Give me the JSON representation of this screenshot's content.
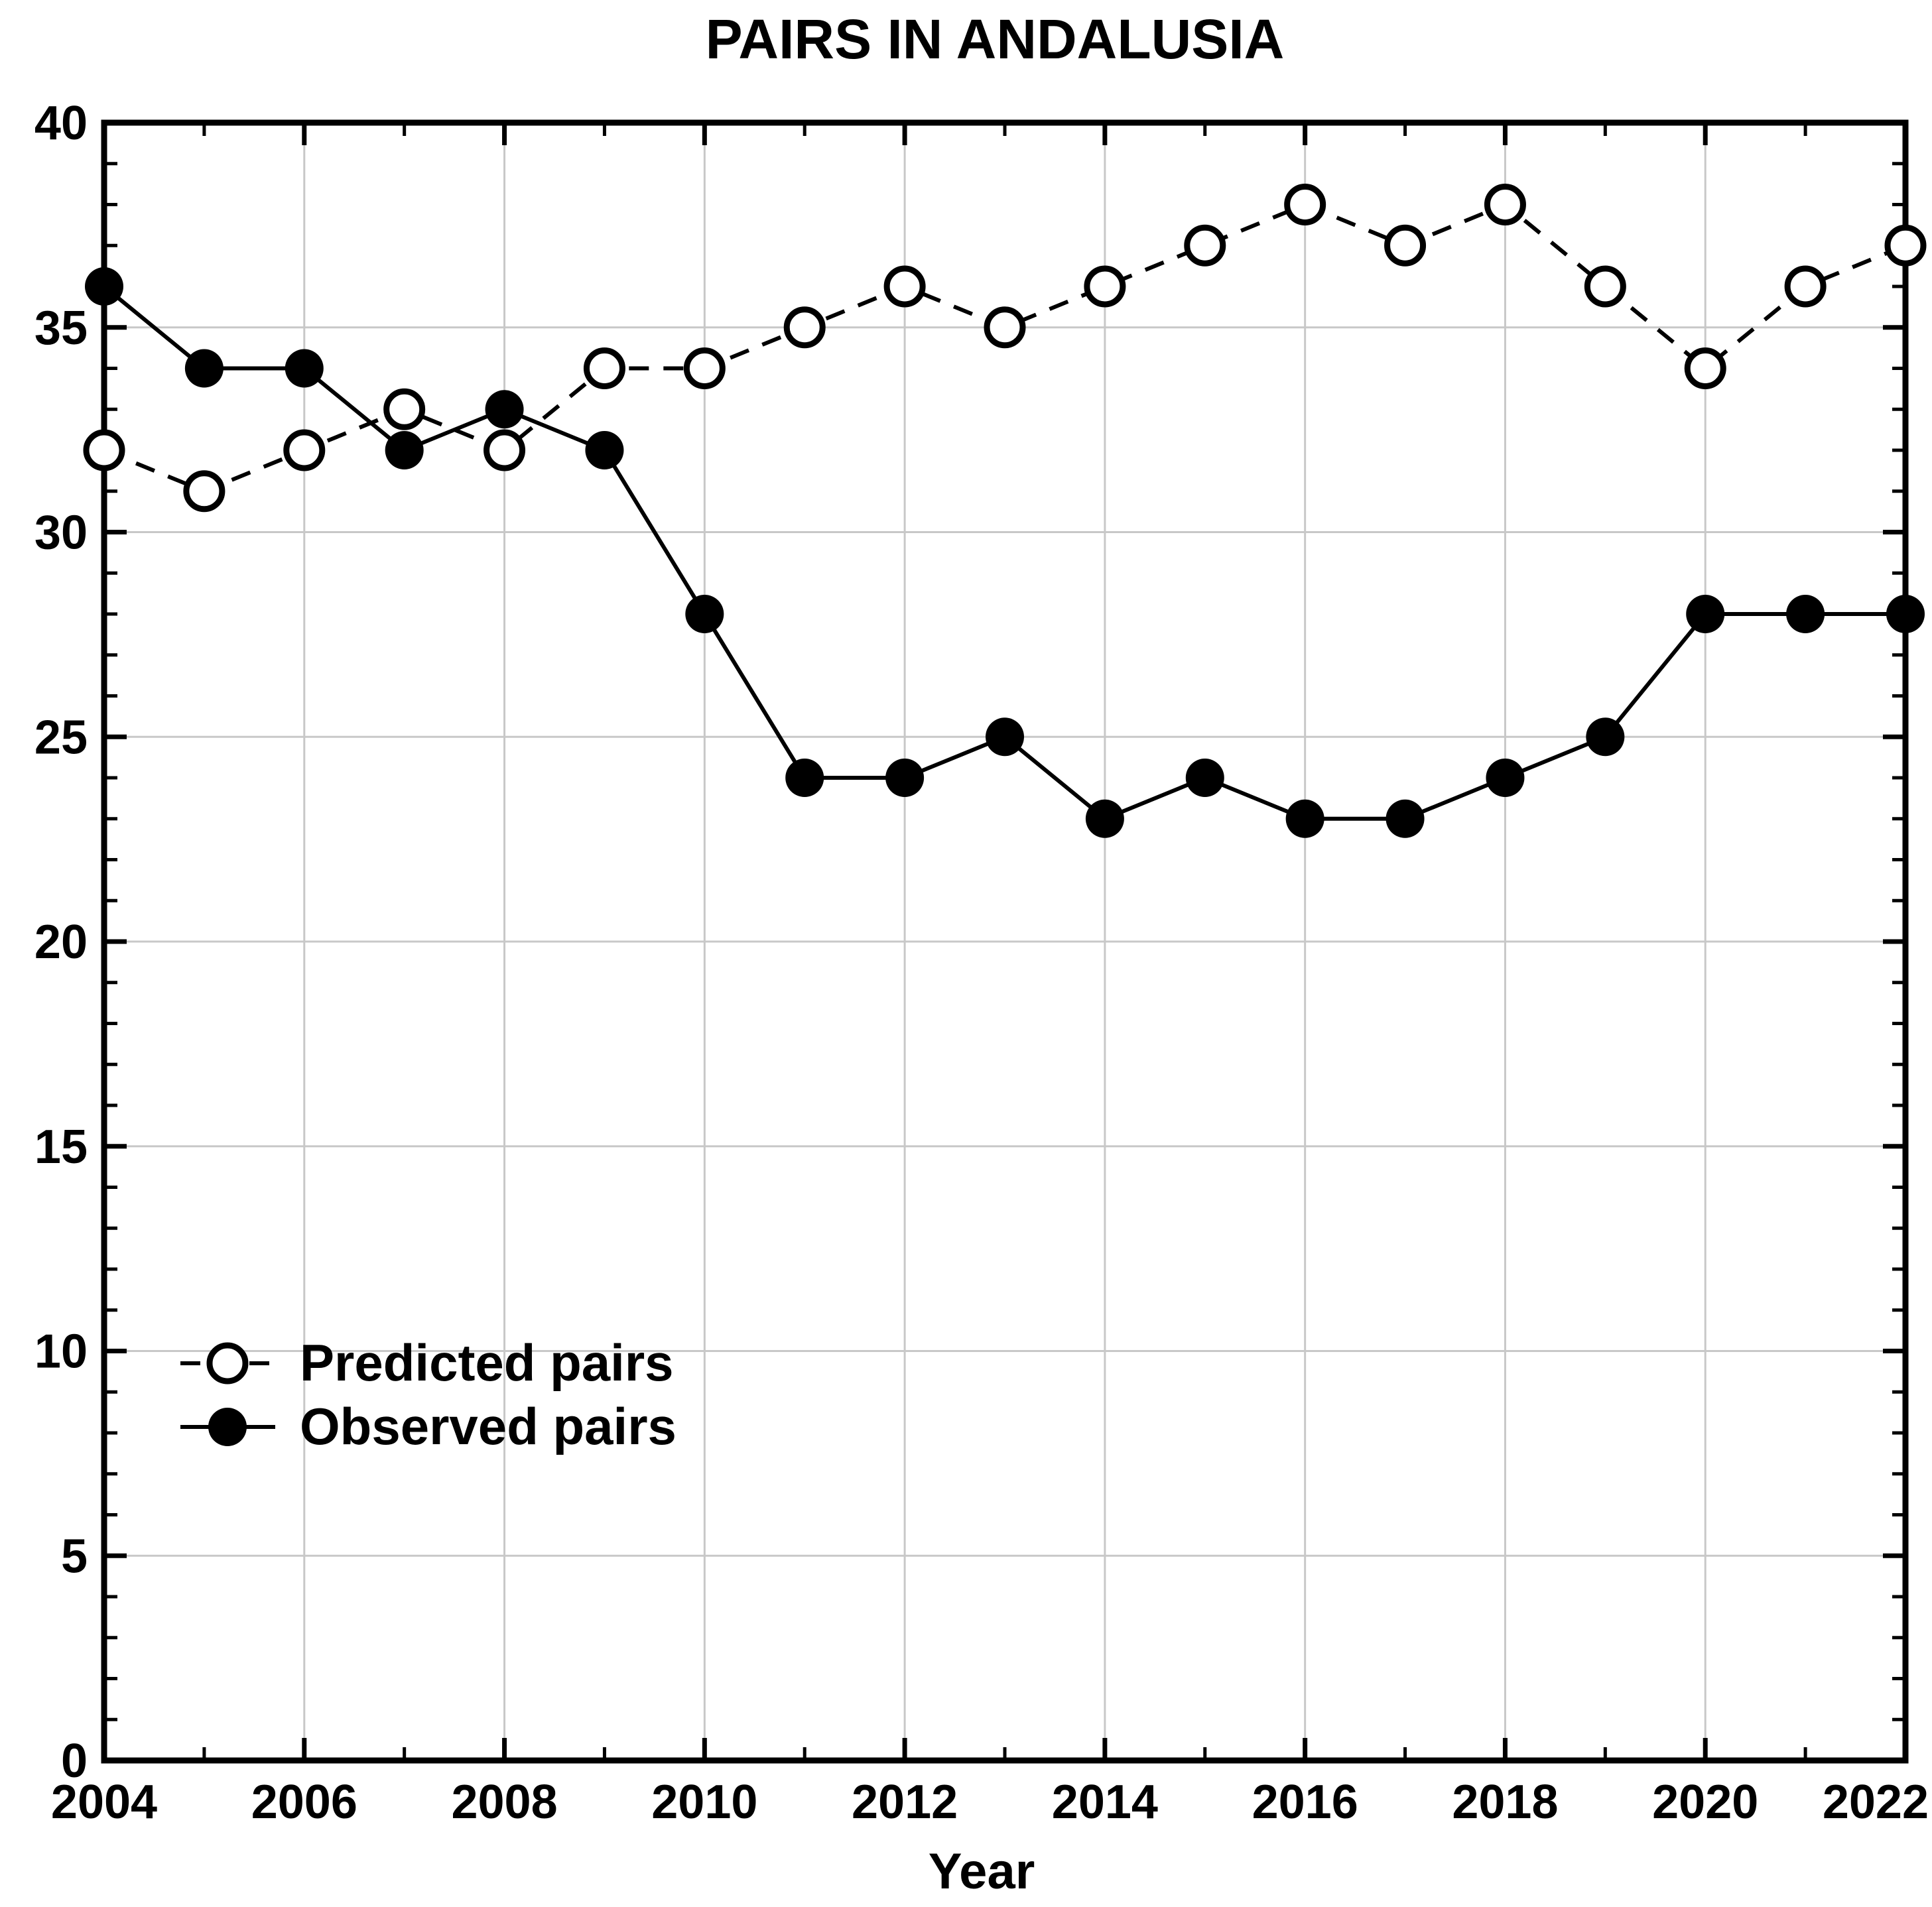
{
  "chart_data": {
    "type": "line",
    "title": "PAIRS IN ANDALUSIA",
    "xlabel": "Year",
    "ylabel": "",
    "x": [
      2004,
      2005,
      2006,
      2007,
      2008,
      2009,
      2010,
      2011,
      2012,
      2013,
      2014,
      2015,
      2016,
      2017,
      2018,
      2019,
      2020,
      2021,
      2022
    ],
    "series": [
      {
        "name": "Predicted pairs",
        "line": "dashed",
        "marker": "open-circle",
        "values": [
          32,
          31,
          32,
          33,
          32,
          34,
          34,
          35,
          36,
          35,
          36,
          37,
          38,
          37,
          38,
          36,
          34,
          36,
          37
        ]
      },
      {
        "name": "Observed pairs",
        "line": "solid",
        "marker": "filled-circle",
        "values": [
          36,
          34,
          34,
          32,
          33,
          32,
          28,
          24,
          24,
          25,
          23,
          24,
          23,
          23,
          24,
          25,
          28,
          28,
          28
        ]
      }
    ],
    "xlim": [
      2004,
      2022
    ],
    "ylim": [
      0,
      40
    ],
    "x_major_ticks": [
      2004,
      2006,
      2008,
      2010,
      2012,
      2014,
      2016,
      2018,
      2020,
      2022
    ],
    "x_tick_labels": [
      "2004",
      "2006",
      "2008",
      "2010",
      "2012",
      "2014",
      "2016",
      "2018",
      "2020",
      "2022"
    ],
    "x_minor_step": 1,
    "y_major_ticks": [
      0,
      5,
      10,
      15,
      20,
      25,
      30,
      35,
      40
    ],
    "y_tick_labels": [
      "0",
      "5",
      "10",
      "15",
      "20",
      "25",
      "30",
      "35",
      "40"
    ],
    "y_minor_step": 1,
    "grid": true,
    "grid_x": [
      2006,
      2008,
      2010,
      2012,
      2014,
      2016,
      2018,
      2020
    ],
    "grid_y": [
      5,
      10,
      15,
      20,
      25,
      30,
      35
    ],
    "legend": {
      "position": "inside-lower-left",
      "entries": [
        {
          "label": "Predicted pairs",
          "marker": "open-circle",
          "line": "dashed"
        },
        {
          "label": "Observed pairs",
          "marker": "filled-circle",
          "line": "solid"
        }
      ]
    }
  },
  "colors": {
    "background": "#ffffff",
    "axis": "#000000",
    "grid_line": "#c8c8c8",
    "text": "#000000",
    "marker_open_fill": "#ffffff",
    "marker_fill": "#000000"
  }
}
